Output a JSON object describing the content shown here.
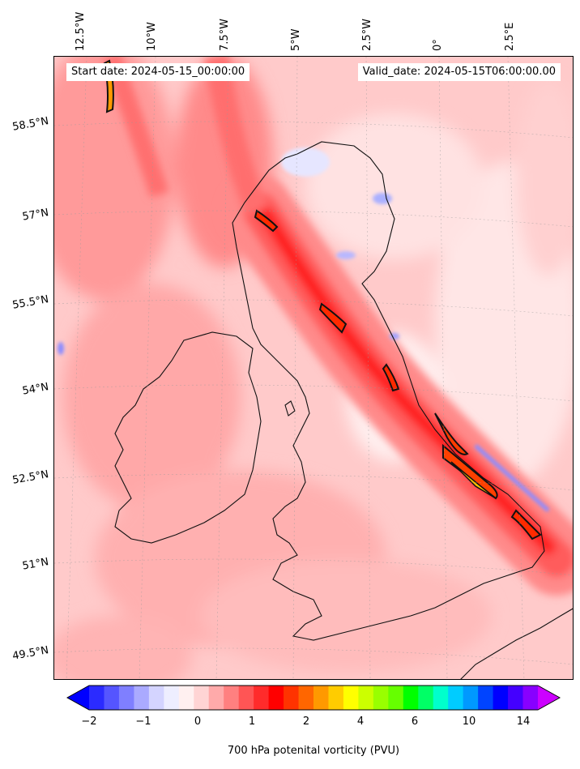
{
  "header": {
    "start_date": "Start date: 2024-05-15_00:00:00",
    "valid_date": "Valid_date: 2024-05-15T06:00:00.00"
  },
  "axes": {
    "lon_labels": [
      "12.5°W",
      "10°W",
      "7.5°W",
      "5°W",
      "2.5°W",
      "0°",
      "2.5°E"
    ],
    "lat_labels": [
      "58.5°N",
      "57°N",
      "55.5°N",
      "54°N",
      "52.5°N",
      "51°N",
      "49.5°N"
    ]
  },
  "colorbar": {
    "label": "700 hPa potenital vorticity (PVU)",
    "ticks": [
      "−2",
      "−1",
      "0",
      "1",
      "2",
      "4",
      "6",
      "10",
      "14"
    ],
    "colors": [
      "#0000ff",
      "#2b2bff",
      "#5555ff",
      "#7f7fff",
      "#aaaaff",
      "#d4d4ff",
      "#eeeeff",
      "#fff0f0",
      "#ffd4d4",
      "#ffaaaa",
      "#ff8080",
      "#ff5555",
      "#ff2b2b",
      "#ff0000",
      "#ff3300",
      "#ff6600",
      "#ff9900",
      "#ffcc00",
      "#ffff00",
      "#ccff00",
      "#99ff00",
      "#66ff00",
      "#00ff00",
      "#00ff66",
      "#00ffcc",
      "#00ccff",
      "#0099ff",
      "#0044ff",
      "#0000ff",
      "#4400ff",
      "#8800ff",
      "#cc00ff"
    ]
  }
}
